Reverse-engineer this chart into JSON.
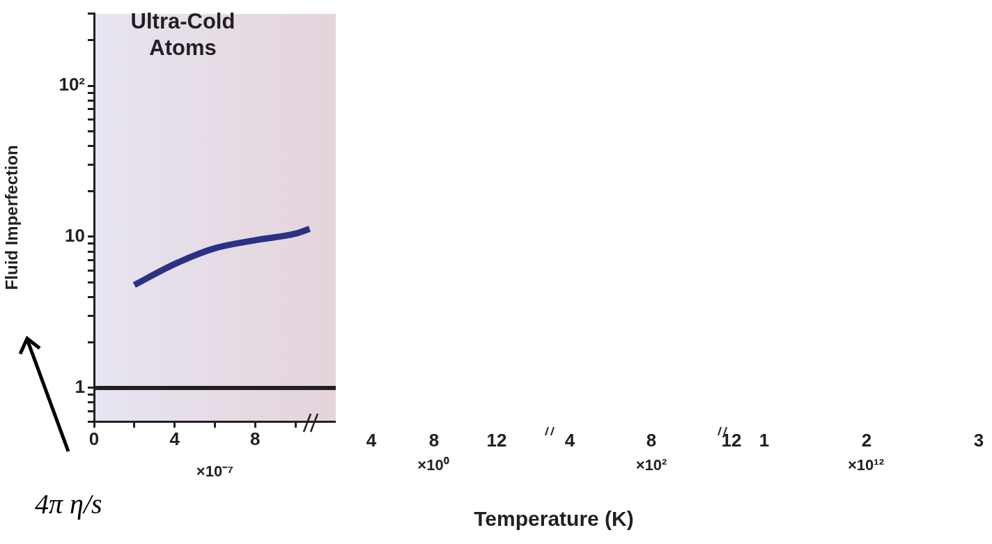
{
  "chart_data": {
    "type": "line",
    "xlabel": "×10⁻⁷",
    "ylabel": "Fluid Imperfection",
    "log": "y",
    "xlim": [
      0,
      12
    ],
    "xticks": [
      0,
      {
        "value": 2,
        "label": null
      },
      4,
      {
        "value": 6,
        "label": null
      },
      8,
      {
        "value": 10,
        "label": null
      }
    ],
    "ylim": [
      0.6,
      300
    ],
    "yticks": [
      {
        "value": 0.6,
        "label": null
      },
      {
        "value": 0.7,
        "label": null
      },
      {
        "value": 0.8,
        "label": null
      },
      {
        "value": 0.9,
        "label": null
      },
      1,
      {
        "value": 2,
        "label": null
      },
      {
        "value": 3,
        "label": null
      },
      {
        "value": 4,
        "label": null
      },
      {
        "value": 5,
        "label": null
      },
      {
        "value": 6,
        "label": null
      },
      {
        "value": 7,
        "label": null
      },
      {
        "value": 8,
        "label": null
      },
      {
        "value": 9,
        "label": null
      },
      10,
      {
        "value": 20,
        "label": null
      },
      {
        "value": 30,
        "label": null
      },
      {
        "value": 40,
        "label": null
      },
      {
        "value": 50,
        "label": null
      },
      {
        "value": 60,
        "label": null
      },
      {
        "value": 70,
        "label": null
      },
      {
        "value": 80,
        "label": null
      },
      {
        "value": 90,
        "label": null
      },
      {
        "value": 100,
        "label": "10²"
      },
      {
        "value": 200,
        "label": null
      },
      {
        "value": 300,
        "label": null
      }
    ],
    "series": [
      {
        "type": "line",
        "color": "#2b3183",
        "x": [
          2,
          4,
          6,
          8,
          10,
          10.7
        ],
        "values": [
          4.8,
          6.6,
          8.4,
          9.5,
          10.5,
          11.3
        ]
      }
    ],
    "ref_lines": [
      {
        "axis": "y",
        "value": 1,
        "color": "#231f20"
      }
    ],
    "annotations": [
      "Ultra-Cold Atoms",
      "4π η/s",
      "Temperature (K)",
      "4",
      "8",
      "12",
      "×10⁰",
      "4",
      "8",
      "12",
      "×10²",
      "1",
      "2",
      "3",
      "×10¹²"
    ]
  }
}
